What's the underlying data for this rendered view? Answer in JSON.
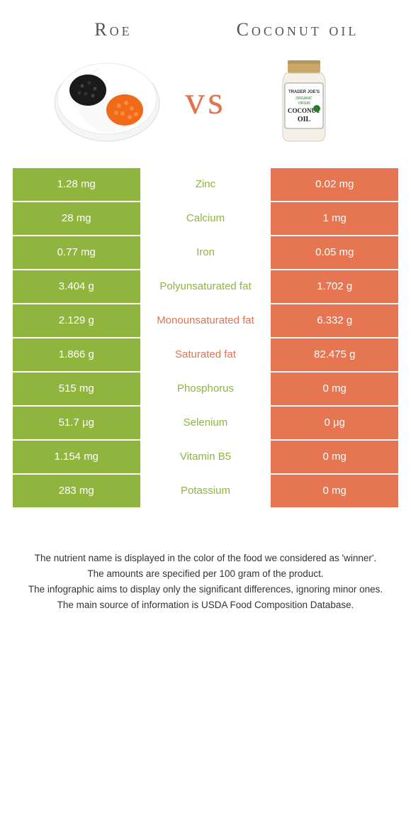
{
  "leftTitle": "Roe",
  "rightTitle": "Coconut oil",
  "vsLabel": "vs",
  "colors": {
    "left": "#8fb53f",
    "right": "#e67552",
    "leftText": "#8fb53f",
    "rightText": "#e3724f",
    "white": "#ffffff"
  },
  "rows": [
    {
      "left": "1.28 mg",
      "nutrient": "Zinc",
      "right": "0.02 mg",
      "winner": "left"
    },
    {
      "left": "28 mg",
      "nutrient": "Calcium",
      "right": "1 mg",
      "winner": "left"
    },
    {
      "left": "0.77 mg",
      "nutrient": "Iron",
      "right": "0.05 mg",
      "winner": "left"
    },
    {
      "left": "3.404 g",
      "nutrient": "Polyunsaturated fat",
      "right": "1.702 g",
      "winner": "left"
    },
    {
      "left": "2.129 g",
      "nutrient": "Monounsaturated fat",
      "right": "6.332 g",
      "winner": "right"
    },
    {
      "left": "1.866 g",
      "nutrient": "Saturated fat",
      "right": "82.475 g",
      "winner": "right"
    },
    {
      "left": "515 mg",
      "nutrient": "Phosphorus",
      "right": "0 mg",
      "winner": "left"
    },
    {
      "left": "51.7 µg",
      "nutrient": "Selenium",
      "right": "0 µg",
      "winner": "left"
    },
    {
      "left": "1.154 mg",
      "nutrient": "Vitamin B5",
      "right": "0 mg",
      "winner": "left"
    },
    {
      "left": "283 mg",
      "nutrient": "Potassium",
      "right": "0 mg",
      "winner": "left"
    }
  ],
  "footer": [
    "The nutrient name is displayed in the color of the food we considered as 'winner'.",
    "The amounts are specified per 100 gram of the product.",
    "The infographic aims to display only the significant differences, ignoring minor ones.",
    "The main source of information is USDA Food Composition Database."
  ]
}
